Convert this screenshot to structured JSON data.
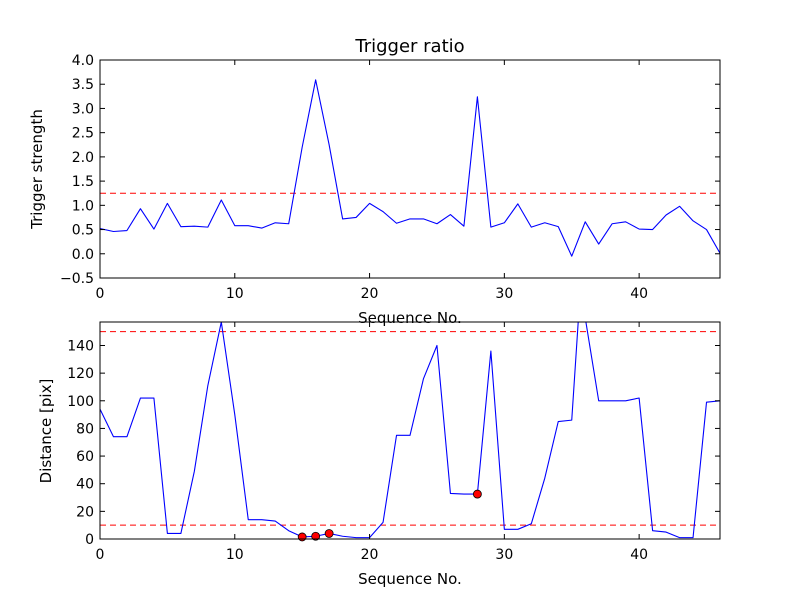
{
  "figure": {
    "background": "#ffffff"
  },
  "chart_data": [
    {
      "type": "line",
      "title": "Trigger ratio",
      "xlabel": "Sequence No.",
      "ylabel": "Trigger strength",
      "xlim": [
        0,
        46
      ],
      "ylim": [
        -0.5,
        4.0
      ],
      "xticks": [
        "0",
        "10",
        "20",
        "30",
        "40"
      ],
      "xtick_values": [
        0,
        10,
        20,
        30,
        40
      ],
      "yticks": [
        "−0.5",
        "0.0",
        "0.5",
        "1.0",
        "1.5",
        "2.0",
        "2.5",
        "3.0",
        "3.5",
        "4.0"
      ],
      "ytick_values": [
        -0.5,
        0.0,
        0.5,
        1.0,
        1.5,
        2.0,
        2.5,
        3.0,
        3.5,
        4.0
      ],
      "grid": false,
      "series": [
        {
          "color": "#0000ff",
          "style": "solid",
          "x": [
            0,
            1,
            2,
            3,
            4,
            5,
            6,
            7,
            8,
            9,
            10,
            11,
            12,
            13,
            14,
            15,
            16,
            17,
            18,
            19,
            20,
            21,
            22,
            23,
            24,
            25,
            26,
            27,
            28,
            29,
            30,
            31,
            32,
            33,
            34,
            35,
            36,
            37,
            38,
            39,
            40,
            41,
            42,
            43,
            44,
            45,
            46
          ],
          "y": [
            0.52,
            0.46,
            0.48,
            0.93,
            0.51,
            1.04,
            0.56,
            0.57,
            0.55,
            1.11,
            0.58,
            0.58,
            0.53,
            0.64,
            0.62,
            2.2,
            3.59,
            2.25,
            0.72,
            0.75,
            1.04,
            0.87,
            0.63,
            0.72,
            0.72,
            0.62,
            0.81,
            0.57,
            3.24,
            0.55,
            0.64,
            1.03,
            0.55,
            0.64,
            0.56,
            -0.05,
            0.66,
            0.2,
            0.62,
            0.66,
            0.51,
            0.5,
            0.8,
            0.98,
            0.68,
            0.5,
            0.01
          ]
        }
      ],
      "hlines": [
        {
          "y": 1.25,
          "color": "#ff0000",
          "style": "dashed"
        }
      ]
    },
    {
      "type": "line",
      "title": "",
      "xlabel": "Sequence No.",
      "ylabel": "Distance [pix]",
      "xlim": [
        0,
        46
      ],
      "ylim": [
        0,
        157
      ],
      "xticks": [
        "0",
        "10",
        "20",
        "30",
        "40"
      ],
      "xtick_values": [
        0,
        10,
        20,
        30,
        40
      ],
      "yticks": [
        "0",
        "20",
        "40",
        "60",
        "80",
        "100",
        "120",
        "140"
      ],
      "ytick_values": [
        0,
        20,
        40,
        60,
        80,
        100,
        120,
        140
      ],
      "grid": false,
      "series": [
        {
          "color": "#0000ff",
          "style": "solid",
          "x": [
            0,
            1,
            2,
            3,
            4,
            5,
            6,
            7,
            8,
            9,
            10,
            11,
            12,
            13,
            14,
            15,
            16,
            17,
            18,
            19,
            20,
            21,
            22,
            23,
            24,
            25,
            26,
            27,
            28,
            29,
            30,
            31,
            32,
            33,
            34,
            35,
            35.5,
            36,
            37,
            38,
            39,
            40,
            41,
            42,
            43,
            44,
            45,
            46
          ],
          "y": [
            94,
            74,
            74,
            102,
            102,
            4,
            4,
            49,
            111,
            157,
            90,
            14,
            14,
            13,
            6,
            1.5,
            2,
            4,
            2,
            1,
            1,
            12,
            75,
            75,
            116,
            140,
            33,
            32.5,
            32.5,
            136,
            7,
            7,
            11,
            44,
            85,
            86,
            160,
            160,
            100,
            100,
            100,
            102,
            6,
            5,
            1,
            1,
            99,
            100
          ]
        },
        {
          "color": "#ff0000",
          "style": "markers",
          "x": [
            15,
            16,
            17,
            28
          ],
          "y": [
            1.5,
            2,
            4,
            32.5
          ]
        }
      ],
      "hlines": [
        {
          "y": 150,
          "color": "#ff0000",
          "style": "dashed"
        },
        {
          "y": 10,
          "color": "#ff0000",
          "style": "dashed"
        }
      ]
    }
  ]
}
